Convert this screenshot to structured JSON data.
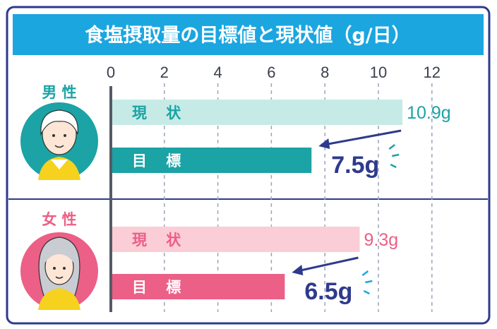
{
  "title": "食塩摂取量の目標値と現状値（g/日）",
  "colors": {
    "frame": "#2e3a8c",
    "title_bg": "#1ba6e0",
    "male_current": "#c6ebe6",
    "male_target": "#1ba3a5",
    "male_current_text": "#1ba3a5",
    "female_current": "#fbcdd6",
    "female_target": "#ec5f86",
    "female_current_text": "#ec5f86",
    "target_value_text": "#2e3a8c",
    "grid": "#9aa4b8",
    "axis": "#555b66",
    "male_avatar_bg": "#1ba3a5",
    "female_avatar_bg": "#ec5f86",
    "female_label": "#ec5f86",
    "male_label": "#1ba3a5"
  },
  "chart_data": {
    "type": "bar",
    "title": "食塩摂取量の目標値と現状値（g/日）",
    "xlim": [
      0,
      12
    ],
    "xticks": [
      "0",
      "2",
      "4",
      "6",
      "8",
      "10",
      "12"
    ],
    "grid": true,
    "groups": [
      {
        "name": "男 性",
        "bars": [
          {
            "label": "現 状",
            "value": 10.9,
            "value_label": "10.9g",
            "kind": "current"
          },
          {
            "label": "目 標",
            "value": 7.5,
            "value_label": "7.5g",
            "kind": "target"
          }
        ]
      },
      {
        "name": "女 性",
        "bars": [
          {
            "label": "現 状",
            "value": 9.3,
            "value_label": "9.3g",
            "kind": "current"
          },
          {
            "label": "目 標",
            "value": 6.5,
            "value_label": "6.5g",
            "kind": "target"
          }
        ]
      }
    ]
  }
}
